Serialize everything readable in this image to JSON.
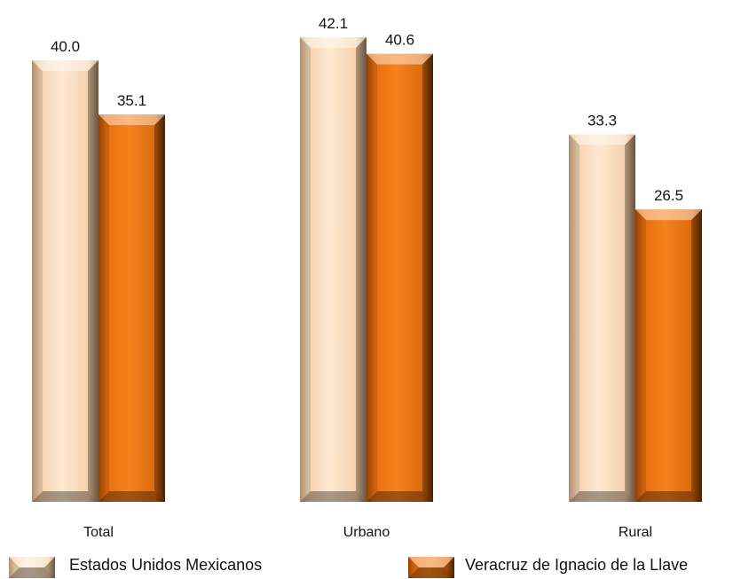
{
  "chart_data": {
    "type": "bar",
    "categories": [
      "Total",
      "Urbano",
      "Rural"
    ],
    "series": [
      {
        "name": "Estados Unidos Mexicanos",
        "values": [
          40.0,
          42.1,
          33.3
        ],
        "color": "#fde0c2",
        "edge": "#b8956c"
      },
      {
        "name": "Veracruz de Ignacio de la Llave",
        "values": [
          35.1,
          40.6,
          26.5
        ],
        "color": "#ef7412",
        "edge": "#7a3a06"
      }
    ],
    "ylim": [
      0,
      42.1
    ],
    "grid": false,
    "legend_position": "bottom",
    "style": "3d-beveled"
  }
}
